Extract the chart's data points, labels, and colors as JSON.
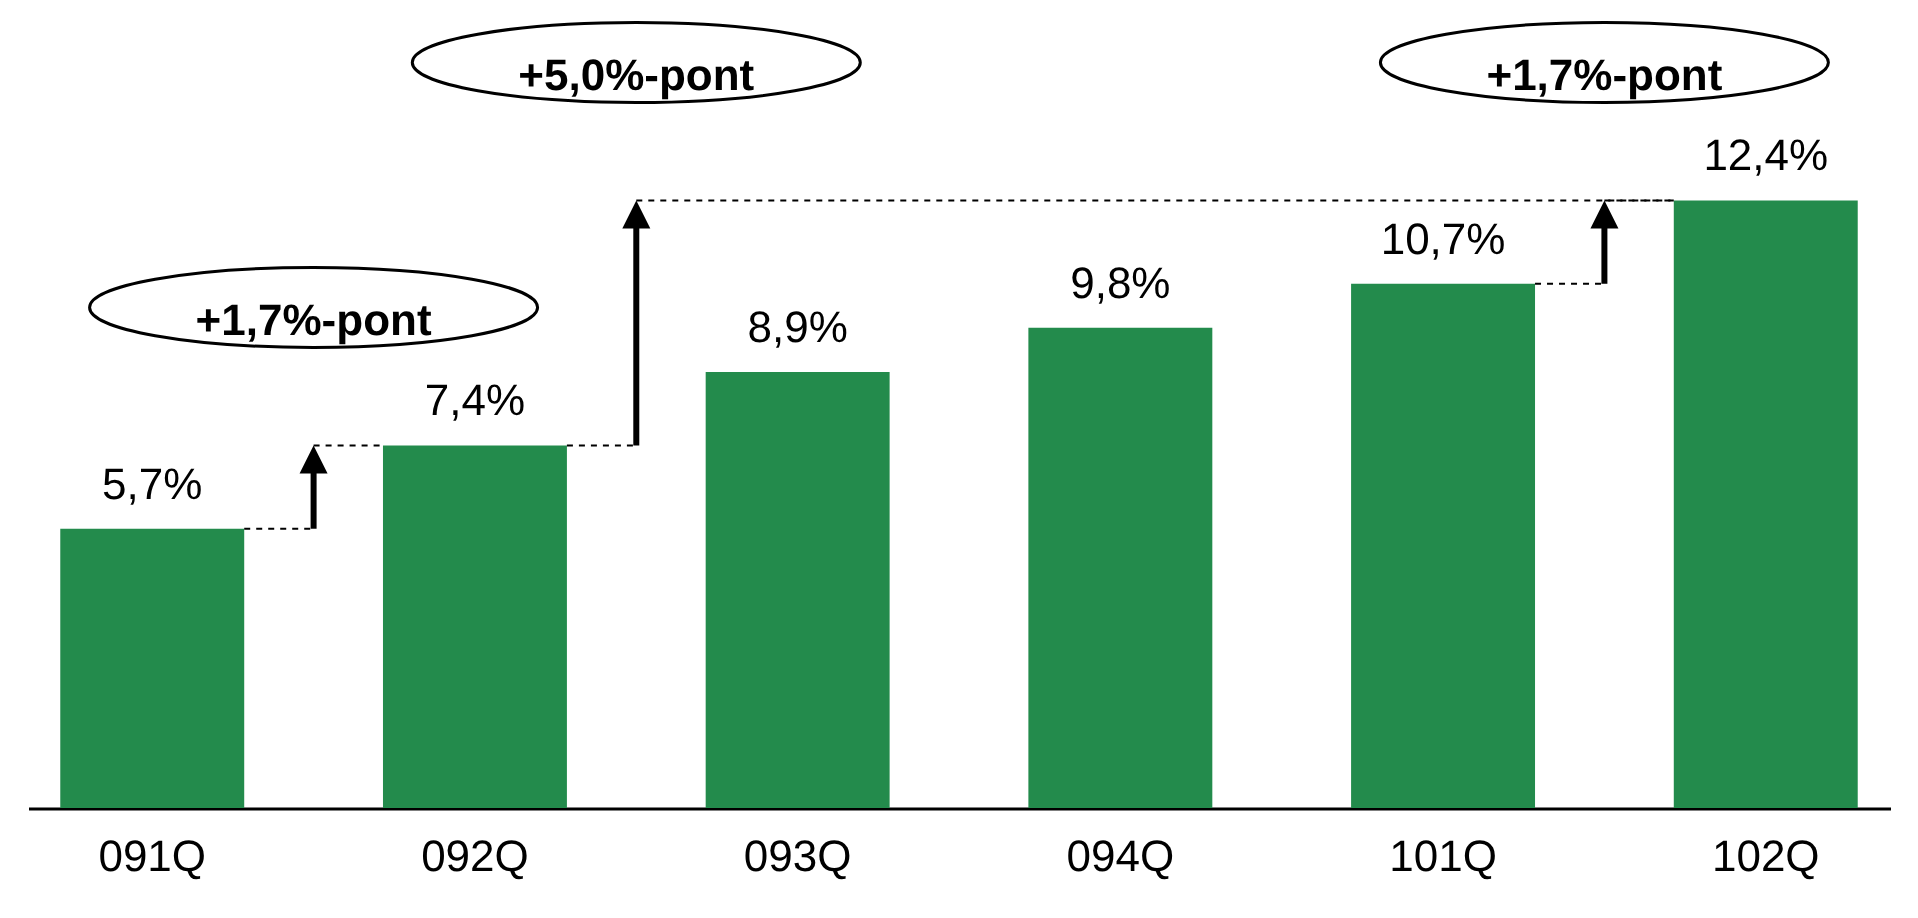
{
  "chart_data": {
    "type": "bar",
    "categories": [
      "091Q",
      "092Q",
      "093Q",
      "094Q",
      "101Q",
      "102Q"
    ],
    "values": [
      5.7,
      7.4,
      8.9,
      9.8,
      10.7,
      12.4
    ],
    "color": "#238b4c",
    "value_labels": [
      "5,7%",
      "7,4%",
      "8,9%",
      "9,8%",
      "10,7%",
      "12,4%"
    ],
    "annotations": [
      "+1,7%-pont",
      "+5,0%-pont",
      "+1,7%-pont"
    ]
  }
}
